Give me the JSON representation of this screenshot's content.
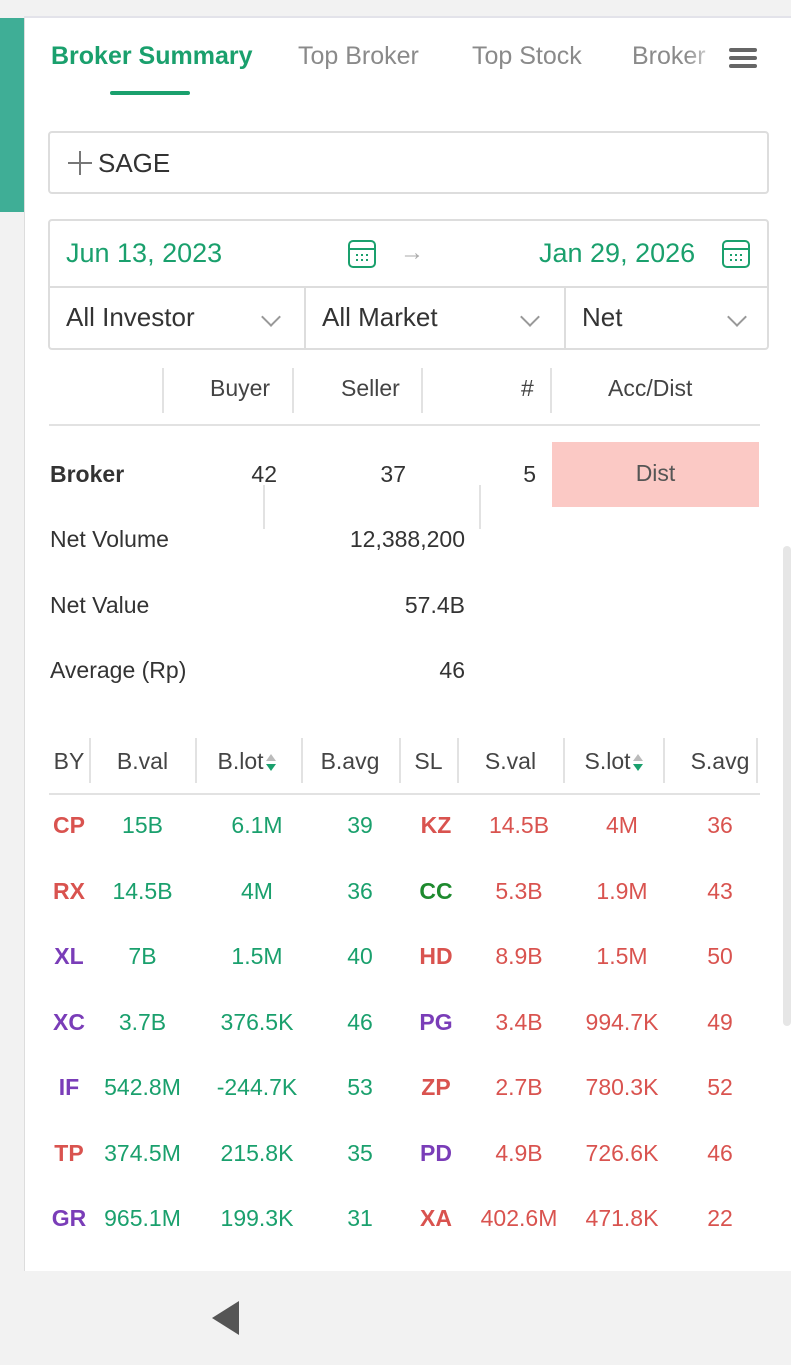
{
  "tabs": [
    "Broker Summary",
    "Top Broker",
    "Top Stock",
    "Broker"
  ],
  "stock": {
    "code": "SAGE"
  },
  "dates": {
    "from": "Jun 13, 2023",
    "to": "Jan 29, 2026",
    "arrow": "→"
  },
  "filters": {
    "investor": "All Investor",
    "market": "All Market",
    "mode": "Net"
  },
  "summary": {
    "headers": {
      "buyer": "Buyer",
      "seller": "Seller",
      "count": "#",
      "acc_dist": "Acc/Dist"
    },
    "broker_label": "Broker",
    "buyer_count": "42",
    "seller_count": "37",
    "diff_count": "5",
    "acc_dist": "Dist",
    "net_volume_label": "Net Volume",
    "net_volume": "12,388,200",
    "net_value_label": "Net Value",
    "net_value": "57.4B",
    "average_label": "Average (Rp)",
    "average": "46"
  },
  "table": {
    "headers": {
      "by": "BY",
      "bval": "B.val",
      "blot": "B.lot",
      "bavg": "B.avg",
      "sl": "SL",
      "sval": "S.val",
      "slot": "S.lot",
      "savg": "S.avg"
    },
    "rows": [
      {
        "by": "CP",
        "by_color": "#d9534f",
        "bval": "15B",
        "blot": "6.1M",
        "bavg": "39",
        "sl": "KZ",
        "sl_color": "#d9534f",
        "sval": "14.5B",
        "slot": "4M",
        "savg": "36"
      },
      {
        "by": "RX",
        "by_color": "#d9534f",
        "bval": "14.5B",
        "blot": "4M",
        "bavg": "36",
        "sl": "CC",
        "sl_color": "#1e8a2e",
        "sval": "5.3B",
        "slot": "1.9M",
        "savg": "43"
      },
      {
        "by": "XL",
        "by_color": "#7a3db8",
        "bval": "7B",
        "blot": "1.5M",
        "bavg": "40",
        "sl": "HD",
        "sl_color": "#d9534f",
        "sval": "8.9B",
        "slot": "1.5M",
        "savg": "50"
      },
      {
        "by": "XC",
        "by_color": "#7a3db8",
        "bval": "3.7B",
        "blot": "376.5K",
        "bavg": "46",
        "sl": "PG",
        "sl_color": "#7a3db8",
        "sval": "3.4B",
        "slot": "994.7K",
        "savg": "49"
      },
      {
        "by": "IF",
        "by_color": "#7a3db8",
        "bval": "542.8M",
        "blot": "-244.7K",
        "bavg": "53",
        "sl": "ZP",
        "sl_color": "#d9534f",
        "sval": "2.7B",
        "slot": "780.3K",
        "savg": "52"
      },
      {
        "by": "TP",
        "by_color": "#d9534f",
        "bval": "374.5M",
        "blot": "215.8K",
        "bavg": "35",
        "sl": "PD",
        "sl_color": "#7a3db8",
        "sval": "4.9B",
        "slot": "726.6K",
        "savg": "46"
      },
      {
        "by": "GR",
        "by_color": "#7a3db8",
        "bval": "965.1M",
        "blot": "199.3K",
        "bavg": "31",
        "sl": "XA",
        "sl_color": "#d9534f",
        "sval": "402.6M",
        "slot": "471.8K",
        "savg": "22"
      }
    ]
  },
  "colors": {
    "accent": "#1aa06d",
    "sell": "#d9534f",
    "dist_bg": "#fbc9c5"
  }
}
